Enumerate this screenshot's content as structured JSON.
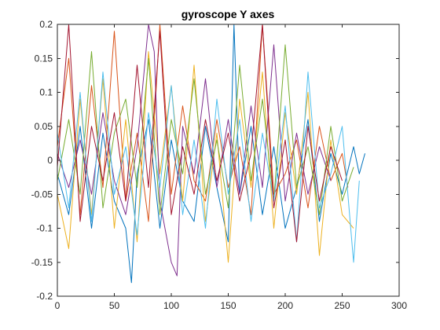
{
  "chart_data": {
    "type": "line",
    "title": "gyroscope Y axes",
    "xlabel": "",
    "ylabel": "",
    "xlim": [
      0,
      300
    ],
    "ylim": [
      -0.2,
      0.2
    ],
    "xticks": [
      0,
      50,
      100,
      150,
      200,
      250,
      300
    ],
    "yticks": [
      -0.2,
      -0.15,
      -0.1,
      -0.05,
      0,
      0.05,
      0.1,
      0.15,
      0.2
    ],
    "xtick_labels": [
      "0",
      "50",
      "100",
      "150",
      "200",
      "250",
      "300"
    ],
    "ytick_labels": [
      "-0.2",
      "-0.15",
      "-0.1",
      "-0.05",
      "0",
      "0.05",
      "0.1",
      "0.15",
      "0.2"
    ],
    "grid": false,
    "box": true,
    "series": [
      {
        "color": "#0072BD",
        "x": [
          0,
          10,
          20,
          30,
          40,
          50,
          60,
          65,
          70,
          80,
          90,
          100,
          110,
          120,
          130,
          140,
          150,
          155,
          160,
          170,
          180,
          190,
          200,
          210,
          220,
          230,
          240,
          250,
          260,
          265,
          270
        ],
        "y": [
          -0.02,
          -0.08,
          0.05,
          -0.1,
          0.04,
          -0.06,
          -0.1,
          -0.18,
          -0.02,
          0.06,
          -0.1,
          0.03,
          -0.06,
          -0.09,
          0.05,
          -0.04,
          -0.12,
          0.2,
          -0.05,
          0.05,
          -0.08,
          0.02,
          -0.1,
          -0.04,
          0.06,
          -0.09,
          0.01,
          -0.05,
          0.02,
          -0.02,
          0.01
        ]
      },
      {
        "color": "#D95319",
        "x": [
          0,
          10,
          20,
          30,
          40,
          50,
          60,
          70,
          80,
          90,
          100,
          110,
          120,
          130,
          140,
          150,
          160,
          170,
          180,
          190,
          200,
          210,
          220,
          230,
          240,
          250,
          255
        ],
        "y": [
          0.02,
          0.15,
          -0.08,
          0.11,
          -0.04,
          0.19,
          -0.06,
          0.04,
          -0.09,
          0.2,
          -0.05,
          0.08,
          -0.03,
          -0.06,
          0.06,
          -0.04,
          0.02,
          -0.08,
          0.2,
          -0.05,
          -0.02,
          0.03,
          -0.07,
          0.05,
          -0.03,
          0.01,
          -0.04
        ]
      },
      {
        "color": "#EDB120",
        "x": [
          0,
          10,
          20,
          30,
          40,
          50,
          60,
          70,
          80,
          90,
          100,
          110,
          120,
          130,
          140,
          150,
          160,
          170,
          180,
          190,
          200,
          210,
          220,
          230,
          240,
          250,
          260
        ],
        "y": [
          -0.05,
          -0.13,
          0.09,
          -0.08,
          0.12,
          -0.1,
          0.06,
          -0.12,
          0.16,
          -0.02,
          0.11,
          -0.06,
          0.14,
          -0.09,
          0.04,
          -0.15,
          0.09,
          -0.04,
          0.13,
          -0.1,
          0.07,
          -0.05,
          0.1,
          -0.14,
          0.03,
          -0.08,
          -0.1
        ]
      },
      {
        "color": "#7E2F8E",
        "x": [
          0,
          10,
          20,
          30,
          40,
          50,
          60,
          70,
          80,
          85,
          90,
          100,
          105,
          110,
          120,
          130,
          140,
          150,
          160,
          170,
          180,
          190,
          200,
          210,
          220,
          230,
          240
        ],
        "y": [
          0.01,
          -0.04,
          0.03,
          -0.05,
          0.07,
          -0.03,
          -0.08,
          0.02,
          0.2,
          0.16,
          -0.06,
          -0.15,
          -0.17,
          0.05,
          -0.02,
          0.12,
          -0.04,
          0.06,
          -0.05,
          0.08,
          -0.04,
          0.17,
          -0.06,
          0.04,
          -0.05,
          0.02,
          -0.03
        ]
      },
      {
        "color": "#77AC30",
        "x": [
          0,
          10,
          20,
          30,
          40,
          50,
          60,
          70,
          80,
          90,
          100,
          110,
          120,
          130,
          140,
          150,
          160,
          170,
          180,
          190,
          200,
          210,
          220,
          230,
          240,
          250,
          260
        ],
        "y": [
          -0.03,
          0.06,
          -0.05,
          0.16,
          -0.07,
          0.04,
          0.09,
          -0.04,
          0.15,
          -0.08,
          0.06,
          -0.02,
          0.12,
          -0.05,
          0.03,
          -0.07,
          0.14,
          -0.03,
          0.09,
          -0.06,
          0.17,
          -0.04,
          0.02,
          -0.08,
          0.05,
          -0.06,
          -0.01
        ]
      },
      {
        "color": "#4DBEEE",
        "x": [
          0,
          10,
          20,
          30,
          40,
          50,
          60,
          70,
          80,
          90,
          100,
          110,
          120,
          130,
          140,
          150,
          160,
          170,
          180,
          190,
          200,
          210,
          220,
          230,
          240,
          250,
          260,
          265
        ],
        "y": [
          0.04,
          -0.07,
          0.1,
          -0.09,
          0.13,
          -0.05,
          0.02,
          -0.11,
          0.07,
          -0.04,
          0.11,
          -0.08,
          0.03,
          -0.1,
          0.09,
          -0.05,
          0.06,
          -0.09,
          0.04,
          -0.06,
          0.08,
          -0.12,
          0.13,
          -0.07,
          -0.02,
          0.05,
          -0.15,
          -0.03
        ]
      },
      {
        "color": "#A2142F",
        "x": [
          0,
          10,
          20,
          30,
          40,
          50,
          60,
          70,
          80,
          90,
          100,
          110,
          120,
          130,
          140,
          150,
          160,
          170,
          180,
          190,
          200,
          210,
          220,
          230,
          240,
          250
        ],
        "y": [
          -0.01,
          0.2,
          -0.09,
          0.05,
          -0.03,
          0.07,
          -0.06,
          0.14,
          -0.04,
          0.19,
          -0.08,
          0.02,
          -0.05,
          0.06,
          -0.03,
          0.04,
          -0.06,
          0.01,
          0.2,
          -0.07,
          0.03,
          -0.12,
          0.05,
          -0.06,
          0.02,
          -0.03
        ]
      }
    ]
  }
}
